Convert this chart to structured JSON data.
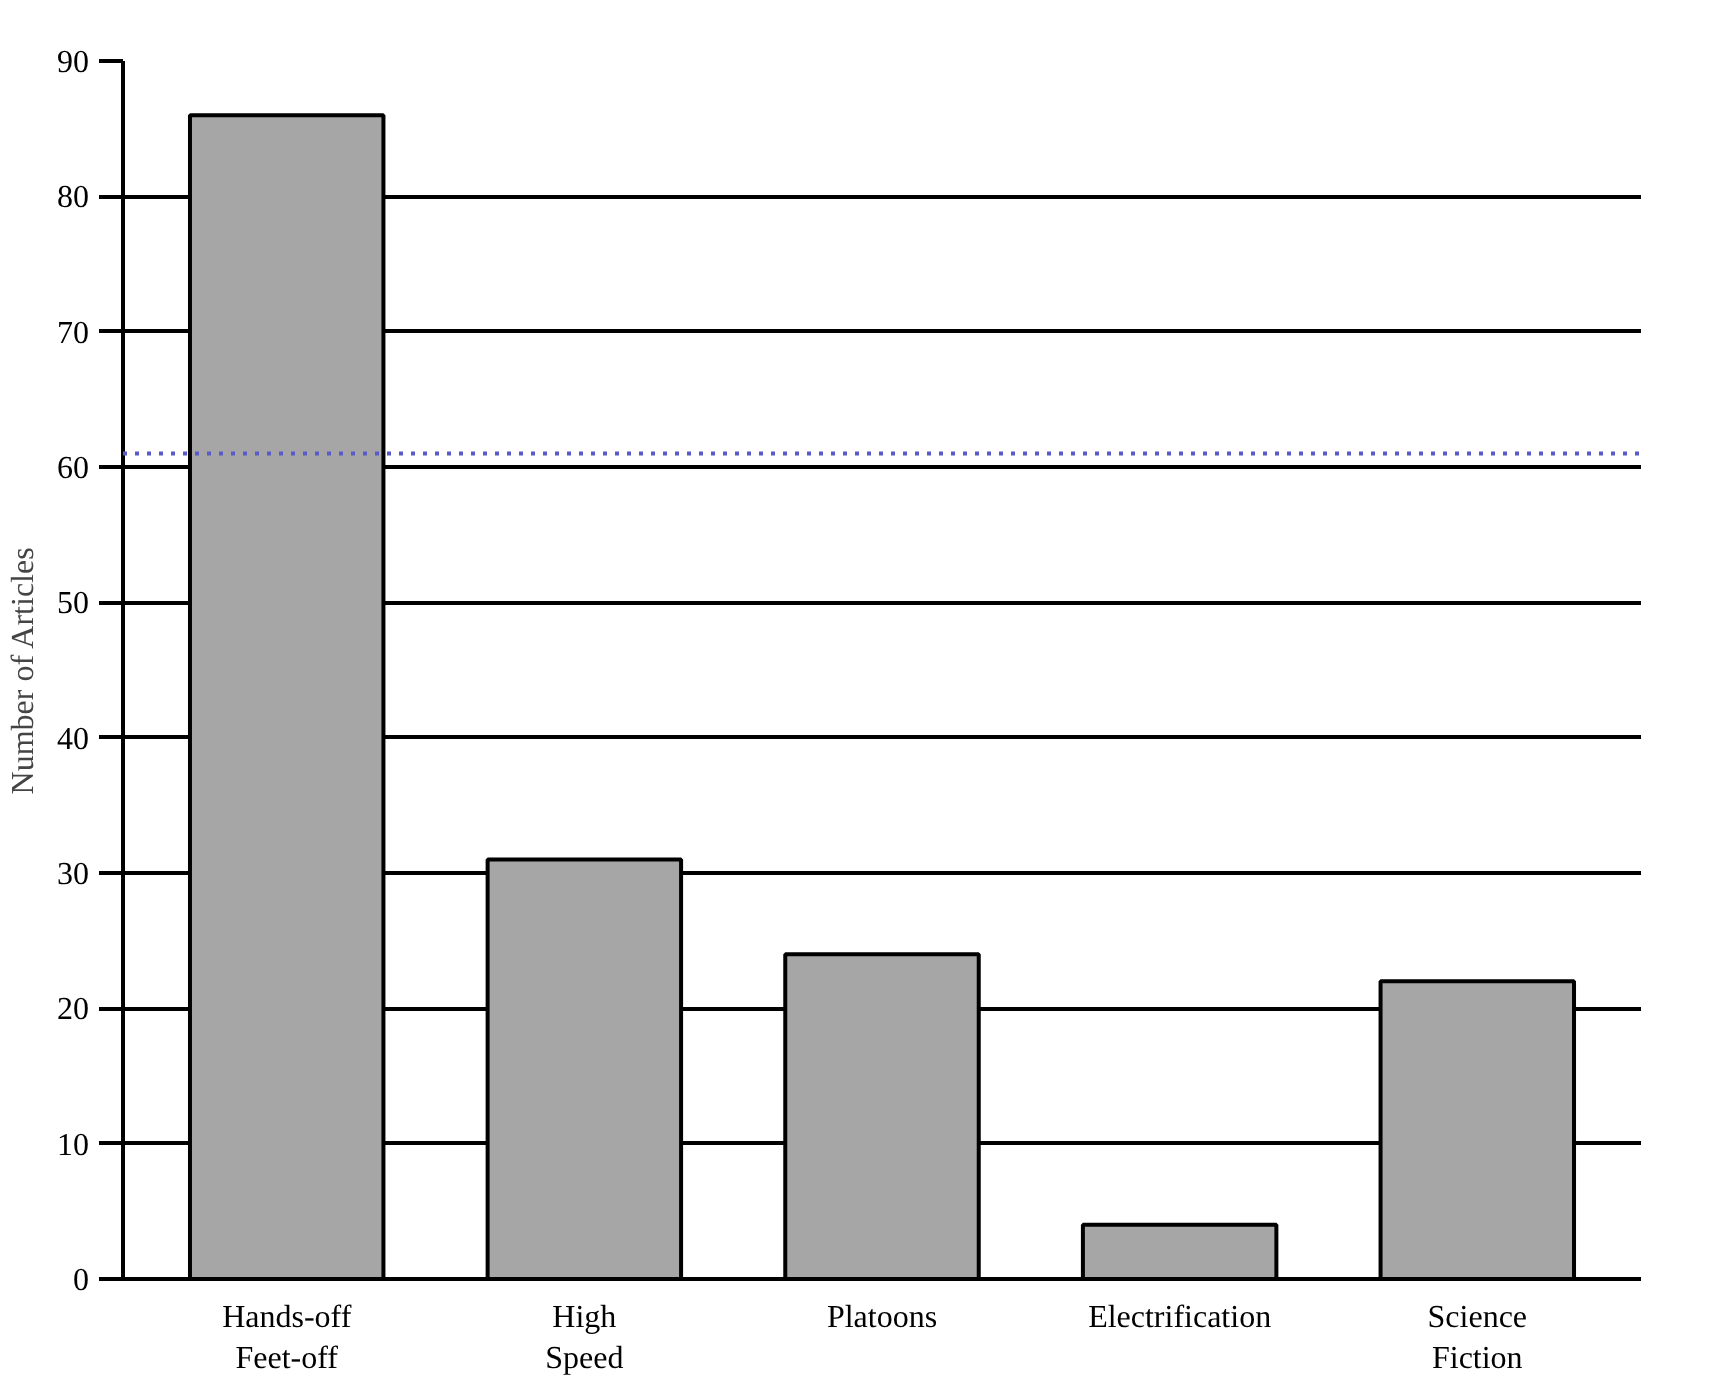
{
  "chart_data": {
    "type": "bar",
    "ylabel": "Number of Articles",
    "categories": [
      "Hands-off\nFeet-off",
      "High\nSpeed",
      "Platoons",
      "Electrification",
      "Science\nFiction"
    ],
    "values": [
      86,
      31,
      24,
      4,
      22
    ],
    "color": "#a6a6a6",
    "ylim": [
      0,
      90
    ],
    "yticks": [
      0,
      10,
      20,
      30,
      40,
      50,
      60,
      70,
      80,
      90
    ],
    "grid": "y",
    "ref_lines": [
      {
        "axis": "y",
        "value": 61,
        "color": "#5a5ac8",
        "line_style": "dotted"
      }
    ]
  }
}
